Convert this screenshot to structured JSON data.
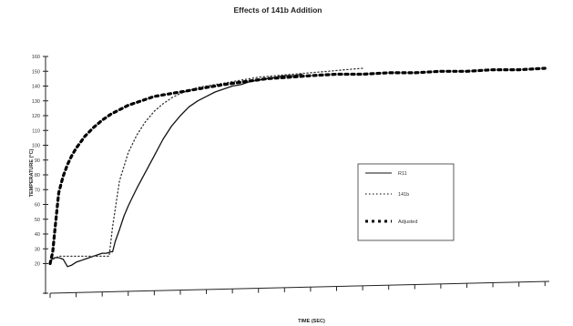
{
  "chart_data": {
    "type": "line",
    "title": "Effects of 141b Addition",
    "xlabel": "TIME (SEC)",
    "ylabel": "TEMPERATURE (°C)",
    "xlim": [
      0,
      575
    ],
    "ylim": [
      0,
      160
    ],
    "yticks": [
      0,
      20,
      30,
      40,
      50,
      60,
      70,
      80,
      90,
      100,
      110,
      120,
      130,
      140,
      150,
      160
    ],
    "ytick_labels": [
      "",
      "20",
      "30",
      "40",
      "50",
      "60",
      "70",
      "80",
      "90",
      "100",
      "110",
      "120",
      "130",
      "140",
      "150",
      "160"
    ],
    "xticks": [
      0,
      30,
      60,
      90,
      120,
      150,
      180,
      210,
      240,
      270,
      300,
      330,
      360,
      390,
      420,
      450,
      480,
      510,
      540,
      570
    ],
    "grid": false,
    "legend_position": "right",
    "series": [
      {
        "name": "R11",
        "style": "solid",
        "color": "#111111",
        "x": [
          0,
          5,
          10,
          15,
          20,
          25,
          30,
          35,
          40,
          45,
          50,
          55,
          60,
          65,
          70,
          72,
          75,
          80,
          85,
          90,
          95,
          100,
          110,
          120,
          130,
          140,
          150,
          160,
          170,
          180,
          190,
          200,
          210,
          220,
          230,
          240,
          250,
          260,
          270,
          280,
          290
        ],
        "y": [
          22,
          24,
          24,
          23,
          18,
          19,
          21,
          22,
          23,
          24,
          25,
          26,
          27,
          27,
          28,
          28,
          35,
          43,
          52,
          59,
          65,
          71,
          82,
          93,
          104,
          113,
          120,
          126,
          130,
          133,
          136,
          138,
          140,
          141,
          143,
          144,
          145,
          146,
          147,
          147,
          148
        ]
      },
      {
        "name": "141b",
        "style": "dotted",
        "color": "#333333",
        "x": [
          0,
          10,
          20,
          30,
          40,
          50,
          60,
          65,
          68,
          72,
          80,
          90,
          100,
          110,
          120,
          130,
          140,
          150,
          160,
          170,
          180,
          200,
          220,
          240,
          260,
          280,
          300,
          320,
          340,
          360
        ],
        "y": [
          22,
          25,
          25,
          25,
          25,
          25,
          25,
          25,
          25,
          45,
          76,
          95,
          107,
          116,
          123,
          128,
          132,
          135,
          137,
          139,
          140,
          142,
          144,
          146,
          147,
          148,
          149,
          150,
          151,
          152
        ]
      },
      {
        "name": "Adjusted",
        "style": "dashed",
        "color": "#000000",
        "x": [
          0,
          3,
          5,
          8,
          10,
          15,
          20,
          25,
          30,
          40,
          50,
          60,
          70,
          80,
          90,
          100,
          110,
          120,
          140,
          160,
          180,
          200,
          225,
          250,
          275,
          300,
          330,
          360,
          390,
          420,
          450,
          480,
          510,
          540,
          570
        ],
        "y": [
          20,
          28,
          40,
          57,
          68,
          79,
          87,
          93,
          98,
          106,
          112,
          117,
          121,
          124,
          127,
          129,
          131,
          133,
          135,
          137,
          139,
          141,
          143,
          145,
          146,
          147,
          148,
          148,
          149,
          149,
          150,
          150,
          151,
          151,
          152
        ]
      }
    ],
    "baseline": {
      "x": [
        0,
        575
      ],
      "y": [
        0,
        8
      ]
    }
  }
}
